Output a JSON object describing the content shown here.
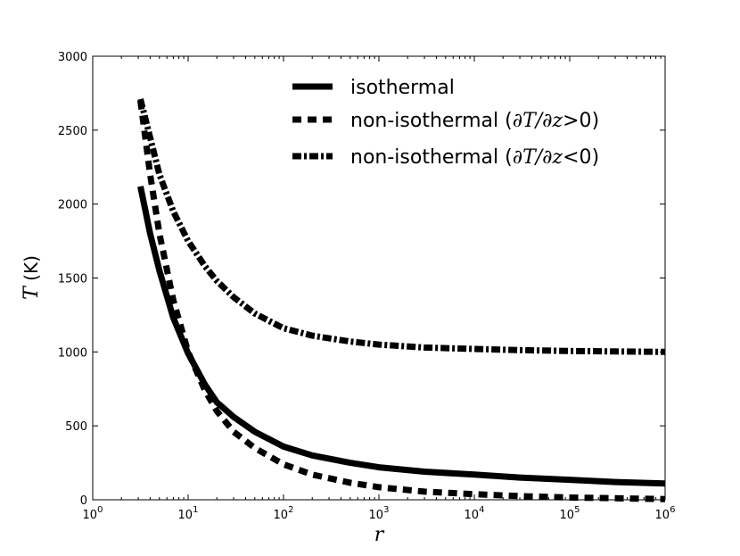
{
  "chart_data": {
    "type": "line",
    "xscale": "log",
    "xlim": [
      1,
      1000000
    ],
    "ylim": [
      0,
      3000
    ],
    "xlabel": "r",
    "ylabel_symbol": "T",
    "ylabel_unit": " (K)",
    "x_ticks": [
      {
        "value": 1,
        "base": "10",
        "exp": "0"
      },
      {
        "value": 10,
        "base": "10",
        "exp": "1"
      },
      {
        "value": 100,
        "base": "10",
        "exp": "2"
      },
      {
        "value": 1000,
        "base": "10",
        "exp": "3"
      },
      {
        "value": 10000,
        "base": "10",
        "exp": "4"
      },
      {
        "value": 100000,
        "base": "10",
        "exp": "5"
      },
      {
        "value": 1000000,
        "base": "10",
        "exp": "6"
      }
    ],
    "y_ticks": [
      {
        "value": 0,
        "label": "0"
      },
      {
        "value": 500,
        "label": "500"
      },
      {
        "value": 1000,
        "label": "1000"
      },
      {
        "value": 1500,
        "label": "1500"
      },
      {
        "value": 2000,
        "label": "2000"
      },
      {
        "value": 2500,
        "label": "2500"
      },
      {
        "value": 3000,
        "label": "3000"
      }
    ],
    "grid": false,
    "legend_position": "top-right",
    "series": [
      {
        "name": "isothermal",
        "style": "solid",
        "color": "#000000",
        "x": [
          3.16,
          4,
          5,
          7,
          10,
          15,
          20,
          30,
          50,
          100,
          200,
          500,
          1000,
          3000,
          10000,
          30000,
          100000,
          300000,
          1000000
        ],
        "y": [
          2120,
          1800,
          1550,
          1230,
          990,
          780,
          660,
          560,
          460,
          360,
          300,
          250,
          220,
          190,
          170,
          150,
          135,
          120,
          110
        ]
      },
      {
        "name": "non-isothermal (∂T/∂z>0)",
        "label_prefix": "non-isothermal (",
        "label_math": "∂T/∂z",
        "label_op": ">0",
        "label_suffix": ")",
        "style": "dashed",
        "color": "#000000",
        "x": [
          3.16,
          4,
          5,
          7,
          10,
          15,
          20,
          30,
          50,
          100,
          200,
          500,
          1000,
          3000,
          10000,
          30000,
          100000,
          300000,
          1000000
        ],
        "y": [
          2700,
          2200,
          1800,
          1350,
          1000,
          740,
          600,
          460,
          350,
          240,
          170,
          115,
          85,
          55,
          38,
          25,
          15,
          10,
          5
        ]
      },
      {
        "name": "non-isothermal (∂T/∂z<0)",
        "label_prefix": "non-isothermal (",
        "label_math": "∂T/∂z",
        "label_op": "<0",
        "label_suffix": ")",
        "style": "dashdot",
        "color": "#000000",
        "x": [
          3.16,
          4,
          5,
          7,
          10,
          15,
          20,
          30,
          50,
          100,
          200,
          500,
          1000,
          3000,
          10000,
          30000,
          100000,
          300000,
          1000000
        ],
        "y": [
          2710,
          2450,
          2200,
          1950,
          1750,
          1580,
          1480,
          1370,
          1260,
          1160,
          1110,
          1070,
          1050,
          1030,
          1020,
          1012,
          1006,
          1003,
          1000
        ]
      }
    ]
  }
}
